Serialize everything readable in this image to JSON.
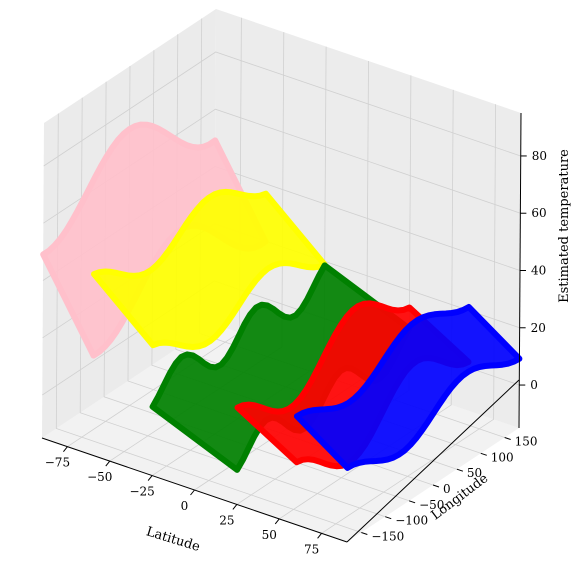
{
  "chart_data": {
    "type": "scatter",
    "projection": "3d",
    "title": "",
    "xlabel": "Latitude",
    "ylabel": "Longitude",
    "zlabel": "Estimated temperature",
    "xlim": [
      -90,
      90
    ],
    "ylim": [
      -180,
      180
    ],
    "zlim": [
      -15,
      95
    ],
    "x_ticks": [
      -75,
      -50,
      -25,
      0,
      25,
      50,
      75
    ],
    "y_ticks": [
      -150,
      -100,
      -50,
      0,
      50,
      100,
      150
    ],
    "z_ticks": [
      0,
      20,
      40,
      60,
      80
    ],
    "x_tick_labels": [
      "−75",
      "−50",
      "−25",
      "0",
      "25",
      "50",
      "75"
    ],
    "y_tick_labels": [
      "−150",
      "−100",
      "−50",
      "0",
      "50",
      "100",
      "150"
    ],
    "z_tick_labels": [
      "0",
      "20",
      "40",
      "60",
      "80"
    ],
    "grid": true,
    "legend": "none",
    "series": [
      {
        "color": "#ffc0cb",
        "approx_region": {
          "lat": [
            -90,
            -60
          ],
          "lon": [
            -180,
            180
          ],
          "temp": [
            35,
            90
          ]
        }
      },
      {
        "color": "#ffff00",
        "approx_region": {
          "lat": [
            -60,
            -25
          ],
          "lon": [
            -180,
            180
          ],
          "temp": [
            10,
            55
          ]
        }
      },
      {
        "color": "#008000",
        "approx_region": {
          "lat": [
            -25,
            25
          ],
          "lon": [
            -180,
            180
          ],
          "temp": [
            -5,
            25
          ]
        }
      },
      {
        "color": "#ff0000",
        "approx_region": {
          "lat": [
            25,
            60
          ],
          "lon": [
            -180,
            180
          ],
          "temp": [
            -15,
            45
          ]
        }
      },
      {
        "color": "#0000ff",
        "approx_region": {
          "lat": [
            60,
            90
          ],
          "lon": [
            -180,
            180
          ],
          "temp": [
            -5,
            45
          ]
        }
      }
    ]
  }
}
